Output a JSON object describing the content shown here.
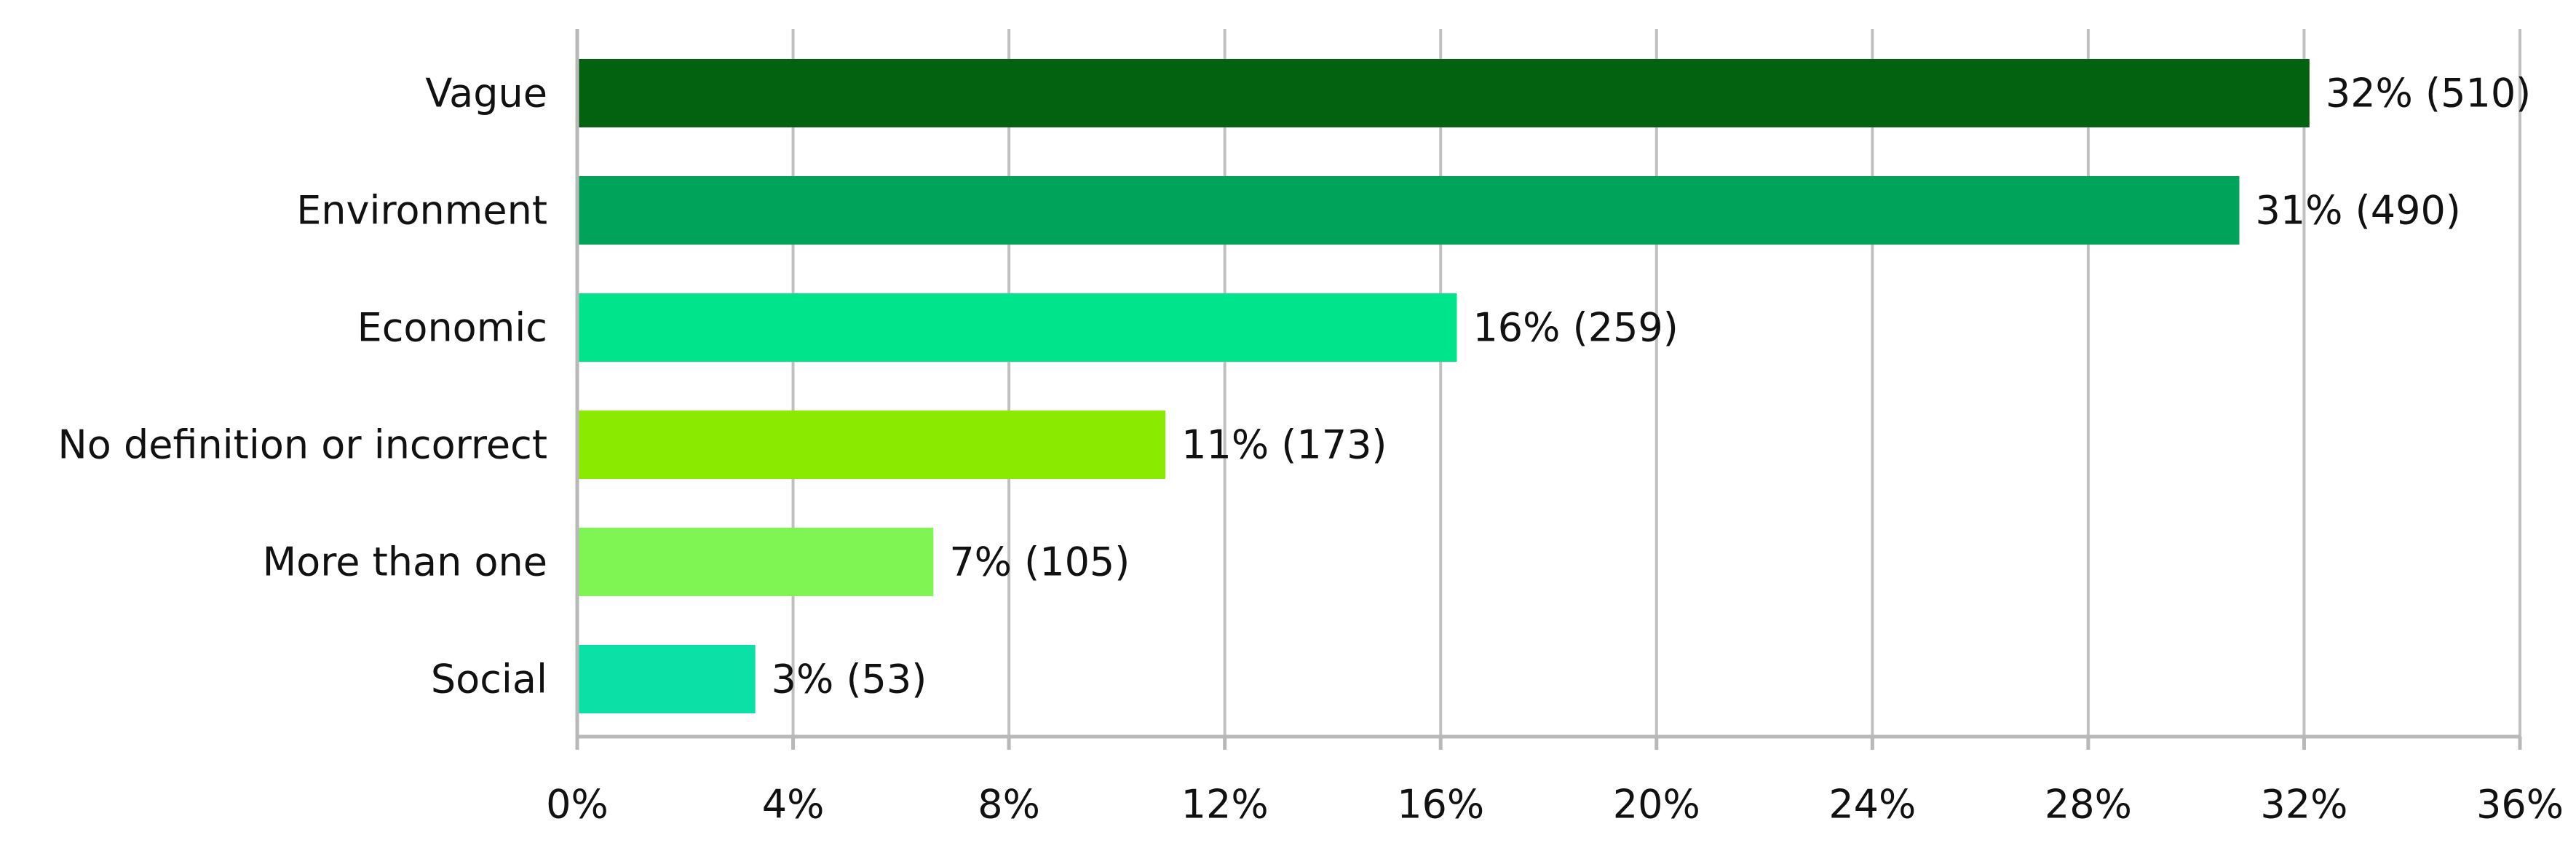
{
  "chart_data": {
    "type": "bar",
    "orientation": "horizontal",
    "title": "",
    "xlabel": "",
    "ylabel": "",
    "xlim": [
      0,
      36
    ],
    "x_ticks": [
      0,
      4,
      8,
      12,
      16,
      20,
      24,
      28,
      32,
      36
    ],
    "x_tick_labels": [
      "0%",
      "4%",
      "8%",
      "12%",
      "16%",
      "20%",
      "24%",
      "28%",
      "32%",
      "36%"
    ],
    "grid": "vertical",
    "categories": [
      "Vague",
      "Environment",
      "Economic",
      "No definition or incorrect",
      "More than one",
      "Social"
    ],
    "values": [
      32.1,
      30.8,
      16.3,
      10.9,
      6.6,
      3.3
    ],
    "counts": [
      510,
      490,
      259,
      173,
      105,
      53
    ],
    "data_labels": [
      "32% (510)",
      "31% (490)",
      "16% (259)",
      "11% (173)",
      "7% (105)",
      "3% (53)"
    ],
    "colors": [
      "#02620f",
      "#00a35a",
      "#00e48c",
      "#8aea00",
      "#7ef552",
      "#0be0a6"
    ]
  }
}
